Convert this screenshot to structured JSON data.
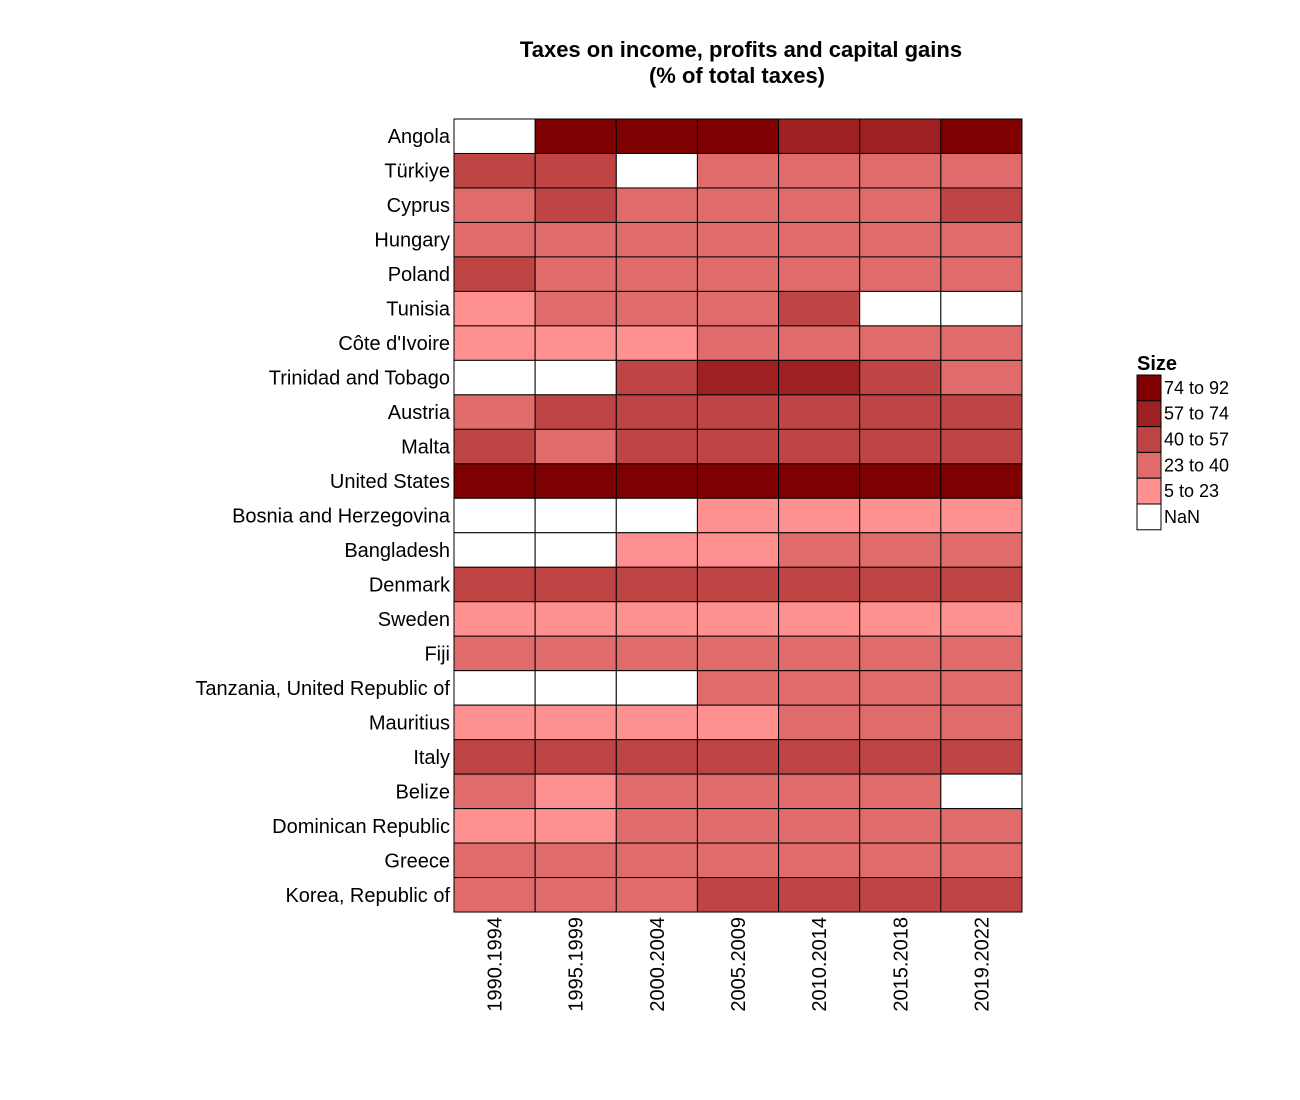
{
  "chart_data": {
    "type": "heatmap",
    "title": "Taxes on income, profits and capital gains",
    "subtitle": "(% of total taxes)",
    "x": [
      "1990.1994",
      "1995.1999",
      "2000.2004",
      "2005.2009",
      "2010.2014",
      "2015.2018",
      "2019.2022"
    ],
    "y": [
      "Angola",
      "Türkiye",
      "Cyprus",
      "Hungary",
      "Poland",
      "Tunisia",
      "Côte d'Ivoire",
      "Trinidad and Tobago",
      "Austria",
      "Malta",
      "United States",
      "Bosnia and Herzegovina",
      "Bangladesh",
      "Denmark",
      "Sweden",
      "Fiji",
      "Tanzania, United Republic of",
      "Mauritius",
      "Italy",
      "Belize",
      "Dominican Republic",
      "Greece",
      "Korea, Republic of"
    ],
    "bins": [
      {
        "label": "74 to 92",
        "color": "#7f0000"
      },
      {
        "label": "57 to 74",
        "color": "#9e2020"
      },
      {
        "label": "40 to 57",
        "color": "#bf4545"
      },
      {
        "label": "23 to 40",
        "color": "#e06b6b"
      },
      {
        "label": "5 to 23",
        "color": "#ff9090"
      },
      {
        "label": "NaN",
        "color": "#ffffff"
      }
    ],
    "values": [
      [
        "NaN",
        "74 to 92",
        "74 to 92",
        "74 to 92",
        "57 to 74",
        "57 to 74",
        "74 to 92"
      ],
      [
        "40 to 57",
        "40 to 57",
        "NaN",
        "23 to 40",
        "23 to 40",
        "23 to 40",
        "23 to 40"
      ],
      [
        "23 to 40",
        "40 to 57",
        "23 to 40",
        "23 to 40",
        "23 to 40",
        "23 to 40",
        "40 to 57"
      ],
      [
        "23 to 40",
        "23 to 40",
        "23 to 40",
        "23 to 40",
        "23 to 40",
        "23 to 40",
        "23 to 40"
      ],
      [
        "40 to 57",
        "23 to 40",
        "23 to 40",
        "23 to 40",
        "23 to 40",
        "23 to 40",
        "23 to 40"
      ],
      [
        "5 to 23",
        "23 to 40",
        "23 to 40",
        "23 to 40",
        "40 to 57",
        "NaN",
        "NaN"
      ],
      [
        "5 to 23",
        "5 to 23",
        "5 to 23",
        "23 to 40",
        "23 to 40",
        "23 to 40",
        "23 to 40"
      ],
      [
        "NaN",
        "NaN",
        "40 to 57",
        "57 to 74",
        "57 to 74",
        "40 to 57",
        "23 to 40"
      ],
      [
        "23 to 40",
        "40 to 57",
        "40 to 57",
        "40 to 57",
        "40 to 57",
        "40 to 57",
        "40 to 57"
      ],
      [
        "40 to 57",
        "23 to 40",
        "40 to 57",
        "40 to 57",
        "40 to 57",
        "40 to 57",
        "40 to 57"
      ],
      [
        "74 to 92",
        "74 to 92",
        "74 to 92",
        "74 to 92",
        "74 to 92",
        "74 to 92",
        "74 to 92"
      ],
      [
        "NaN",
        "NaN",
        "NaN",
        "5 to 23",
        "5 to 23",
        "5 to 23",
        "5 to 23"
      ],
      [
        "NaN",
        "NaN",
        "5 to 23",
        "5 to 23",
        "23 to 40",
        "23 to 40",
        "23 to 40"
      ],
      [
        "40 to 57",
        "40 to 57",
        "40 to 57",
        "40 to 57",
        "40 to 57",
        "40 to 57",
        "40 to 57"
      ],
      [
        "5 to 23",
        "5 to 23",
        "5 to 23",
        "5 to 23",
        "5 to 23",
        "5 to 23",
        "5 to 23"
      ],
      [
        "23 to 40",
        "23 to 40",
        "23 to 40",
        "23 to 40",
        "23 to 40",
        "23 to 40",
        "23 to 40"
      ],
      [
        "NaN",
        "NaN",
        "NaN",
        "23 to 40",
        "23 to 40",
        "23 to 40",
        "23 to 40"
      ],
      [
        "5 to 23",
        "5 to 23",
        "5 to 23",
        "5 to 23",
        "23 to 40",
        "23 to 40",
        "23 to 40"
      ],
      [
        "40 to 57",
        "40 to 57",
        "40 to 57",
        "40 to 57",
        "40 to 57",
        "40 to 57",
        "40 to 57"
      ],
      [
        "23 to 40",
        "5 to 23",
        "23 to 40",
        "23 to 40",
        "23 to 40",
        "23 to 40",
        "NaN"
      ],
      [
        "5 to 23",
        "5 to 23",
        "23 to 40",
        "23 to 40",
        "23 to 40",
        "23 to 40",
        "23 to 40"
      ],
      [
        "23 to 40",
        "23 to 40",
        "23 to 40",
        "23 to 40",
        "23 to 40",
        "23 to 40",
        "23 to 40"
      ],
      [
        "23 to 40",
        "23 to 40",
        "23 to 40",
        "40 to 57",
        "40 to 57",
        "40 to 57",
        "40 to 57"
      ]
    ],
    "legend": {
      "title": "Size",
      "position": "right"
    },
    "grid": false
  }
}
